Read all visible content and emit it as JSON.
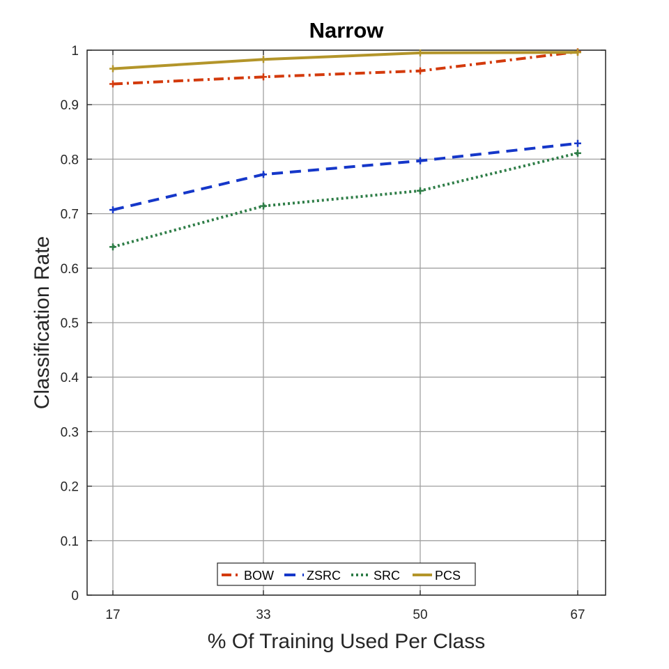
{
  "chart_data": {
    "type": "line",
    "title": "Narrow",
    "xlabel": "% Of Training Used Per Class",
    "ylabel": "Classification Rate",
    "x": [
      17,
      33,
      50,
      67
    ],
    "x_tick_labels": [
      "17",
      "33",
      "50",
      "67"
    ],
    "ylim": [
      0,
      1
    ],
    "y_ticks": [
      0,
      0.1,
      0.2,
      0.3,
      0.4,
      0.5,
      0.6,
      0.7,
      0.8,
      0.9,
      1
    ],
    "y_tick_labels": [
      "0",
      "0.1",
      "0.2",
      "0.3",
      "0.4",
      "0.5",
      "0.6",
      "0.7",
      "0.8",
      "0.9",
      "1"
    ],
    "grid": true,
    "legend_position": "bottom-center",
    "series": [
      {
        "name": "BOW",
        "values": [
          0.938,
          0.951,
          0.962,
          0.997
        ],
        "color": "#d33a0c",
        "style": "dashdot"
      },
      {
        "name": "ZSRC",
        "values": [
          0.707,
          0.772,
          0.797,
          0.829
        ],
        "color": "#1537c9",
        "style": "dashed"
      },
      {
        "name": "SRC",
        "values": [
          0.639,
          0.714,
          0.742,
          0.811
        ],
        "color": "#2e7d47",
        "style": "dotted"
      },
      {
        "name": "PCS",
        "values": [
          0.966,
          0.983,
          0.995,
          0.996
        ],
        "color": "#b3952a",
        "style": "solid"
      }
    ]
  }
}
